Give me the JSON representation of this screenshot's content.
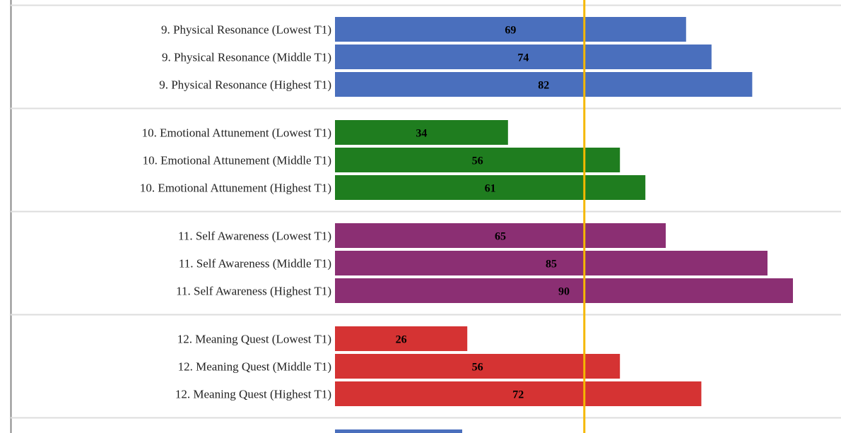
{
  "chart_data": {
    "type": "bar",
    "orientation": "horizontal",
    "groups": [
      {
        "color": "#4a6fbd",
        "categories": [
          "9. Physical Resonance (Lowest T1)",
          "9. Physical Resonance (Middle T1)",
          "9. Physical Resonance (Highest T1)"
        ],
        "values": [
          69,
          74,
          82
        ]
      },
      {
        "color": "#1f7d1f",
        "categories": [
          "10. Emotional Attunement (Lowest T1)",
          "10. Emotional Attunement (Middle T1)",
          "10. Emotional Attunement (Highest T1)"
        ],
        "values": [
          34,
          56,
          61
        ]
      },
      {
        "color": "#8b2f73",
        "categories": [
          "11. Self Awareness (Lowest T1)",
          "11. Self Awareness (Middle T1)",
          "11. Self Awareness (Highest T1)"
        ],
        "values": [
          65,
          85,
          90
        ]
      },
      {
        "color": "#d53333",
        "categories": [
          "12. Meaning Quest (Lowest T1)",
          "12. Meaning Quest (Middle T1)",
          "12. Meaning Quest (Highest T1)"
        ],
        "values": [
          26,
          56,
          72
        ]
      }
    ],
    "next_group_partial": {
      "color": "#4a6fbd",
      "value": 25
    },
    "reference_line": {
      "value": 49,
      "color": "#f5b800"
    },
    "xlim": [
      0,
      100
    ],
    "grid": false,
    "legend": "none"
  }
}
